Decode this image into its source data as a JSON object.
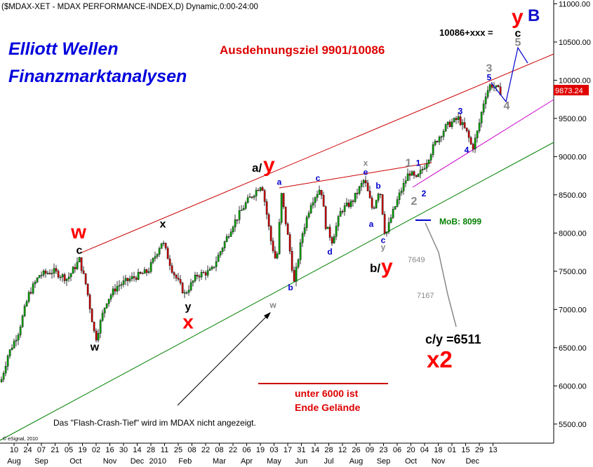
{
  "chart_data": {
    "type": "candlestick",
    "title": "($MDAX-XET - MDAX PERFORMANCE-INDEX,D) Dynamic,0:00-24:00",
    "copyright": "© eSignal, 2010",
    "watermark": [
      "Elliott Wellen",
      "Finanzmarktanalysen"
    ],
    "ylim": [
      5250,
      11050
    ],
    "y_ticks": [
      "11000.00",
      "10500.00",
      "10000.00",
      "9500.00",
      "9000.00",
      "8500.00",
      "8000.00",
      "7500.00",
      "7000.00",
      "6500.00",
      "6000.00",
      "5500.00"
    ],
    "last_price": "9873.24",
    "x_ticks_day": [
      "10",
      "24",
      "07",
      "21",
      "05",
      "19",
      "02",
      "16",
      "30",
      "14",
      "28",
      "11",
      "25",
      "08",
      "22",
      "08",
      "22",
      "06",
      "19",
      "03",
      "17",
      "31",
      "14",
      "28",
      "12",
      "26",
      "09",
      "23",
      "06",
      "20",
      "04",
      "18",
      "01",
      "15",
      "29",
      "13"
    ],
    "x_ticks_month": [
      "Aug",
      "Sep",
      "Oct",
      "Nov",
      "Dec",
      "2010",
      "Feb",
      "Mar",
      "Apr",
      "May",
      "Jun",
      "Jul",
      "Aug",
      "Sep",
      "Oct",
      "Nov",
      "Dec"
    ],
    "annotations": {
      "target": "Ausdehnungsziel 9901/10086",
      "target_price": "10086+xxx =",
      "mob": "MoB: 8099",
      "level_7649": "7649",
      "level_7167": "7167",
      "cy_label": "c/y =6511",
      "x2": "x2",
      "warning_1": "unter 6000 ist",
      "warning_2": "Ende Gelände",
      "flash_note": "Das \"Flash-Crash-Tief\" wird im MDAX nicht angezeigt.",
      "yB_y": "y",
      "yB_B": "B",
      "ay_a": "a/",
      "ay_y": "y",
      "by_b": "b/",
      "by_y": "y"
    },
    "wave_labels": [
      {
        "text": "w",
        "color": "#ff0000",
        "size": "big",
        "x": 0.0,
        "y": 7930
      },
      {
        "text": "c",
        "color": "#000000",
        "size": "mid",
        "x": 0.0,
        "y": 7730
      },
      {
        "text": "w",
        "color": "#000000",
        "size": "mid",
        "x": 0.0,
        "y": 6460
      },
      {
        "text": "x",
        "color": "#000000",
        "size": "mid",
        "x": 0.0,
        "y": 8070
      },
      {
        "text": "y",
        "color": "#000000",
        "size": "mid",
        "x": 0.0,
        "y": 6990
      },
      {
        "text": "x",
        "color": "#ff0000",
        "size": "big",
        "x": 0.0,
        "y": 6750
      },
      {
        "text": "a",
        "color": "#0000cc",
        "size": "small",
        "x": 0.0,
        "y": 8630
      },
      {
        "text": "b",
        "color": "#0000cc",
        "size": "small",
        "x": 0.0,
        "y": 7250
      },
      {
        "text": "w",
        "color": "#888888",
        "size": "small",
        "x": 0.0,
        "y": 7020
      },
      {
        "text": "c",
        "color": "#0000cc",
        "size": "small",
        "x": 0.0,
        "y": 8680
      },
      {
        "text": "d",
        "color": "#0000cc",
        "size": "small",
        "x": 0.0,
        "y": 7720
      },
      {
        "text": "x",
        "color": "#888888",
        "size": "small",
        "x": 0.0,
        "y": 8880
      },
      {
        "text": "e",
        "color": "#0000cc",
        "size": "small",
        "x": 0.0,
        "y": 8760
      },
      {
        "text": "b",
        "color": "#0000cc",
        "size": "small",
        "x": 0.0,
        "y": 8580
      },
      {
        "text": "a",
        "color": "#0000cc",
        "size": "small",
        "x": 0.0,
        "y": 8080
      },
      {
        "text": "c",
        "color": "#0000cc",
        "size": "small",
        "x": 0.0,
        "y": 7870
      },
      {
        "text": "y",
        "color": "#888888",
        "size": "small",
        "x": 0.0,
        "y": 7780
      },
      {
        "text": "1",
        "color": "#888888",
        "size": "mid",
        "x": 0.0,
        "y": 8870
      },
      {
        "text": "1",
        "color": "#0000cc",
        "size": "small",
        "x": 0.0,
        "y": 8880
      },
      {
        "text": "2",
        "color": "#888888",
        "size": "mid",
        "x": 0.0,
        "y": 8370
      },
      {
        "text": "2",
        "color": "#0000cc",
        "size": "small",
        "x": 0.0,
        "y": 8480
      },
      {
        "text": "3",
        "color": "#0000cc",
        "size": "small",
        "x": 0.0,
        "y": 9560
      },
      {
        "text": "4",
        "color": "#0000cc",
        "size": "small",
        "x": 0.0,
        "y": 9050
      },
      {
        "text": "3",
        "color": "#888888",
        "size": "mid",
        "x": 0.0,
        "y": 10110
      },
      {
        "text": "5",
        "color": "#0000cc",
        "size": "small",
        "x": 0.0,
        "y": 10000
      },
      {
        "text": "4",
        "color": "#888888",
        "size": "mid",
        "x": 0.0,
        "y": 9620
      },
      {
        "text": "5",
        "color": "#888888",
        "size": "mid",
        "x": 0.0,
        "y": 10450
      },
      {
        "text": "c",
        "color": "#000000",
        "size": "mid",
        "x": 0.0,
        "y": 10570
      }
    ]
  }
}
